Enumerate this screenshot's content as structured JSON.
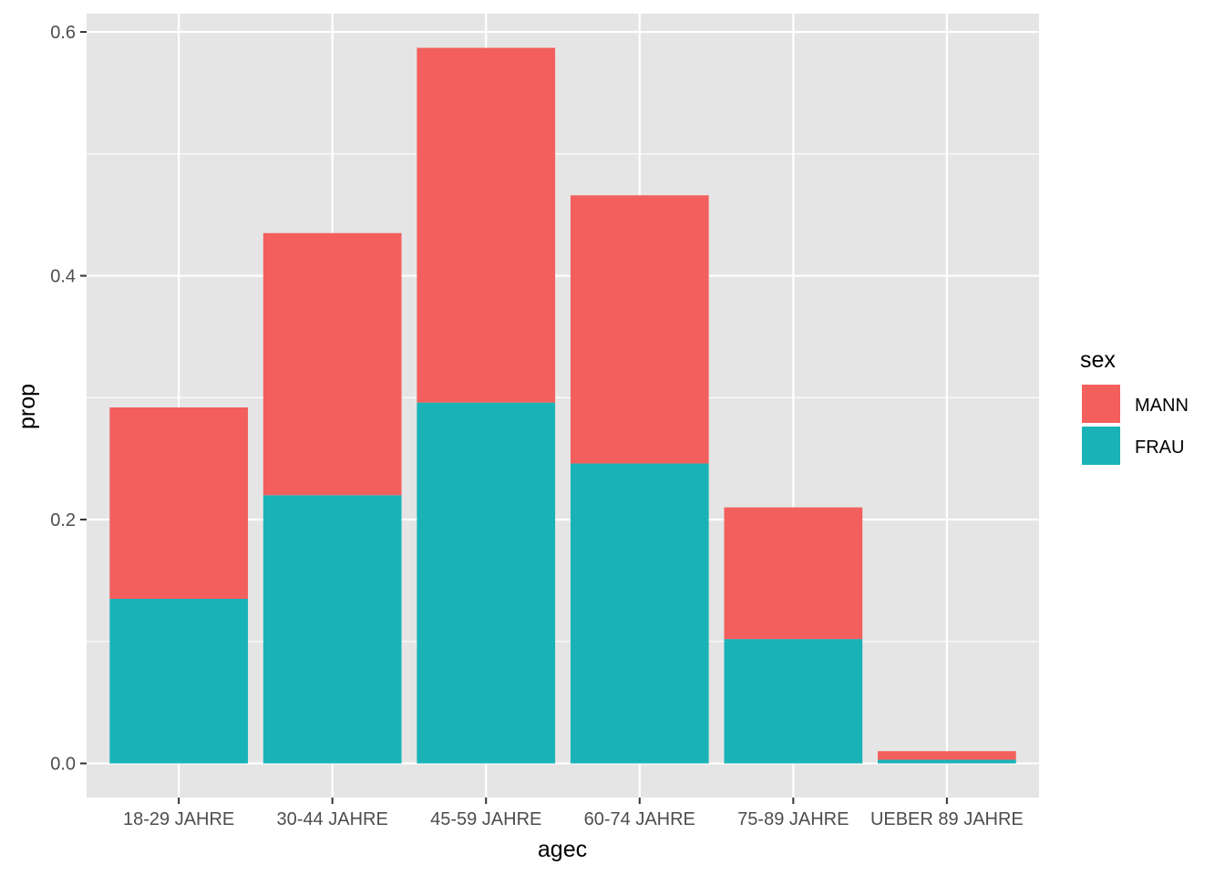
{
  "chart_data": {
    "type": "bar",
    "stacked": true,
    "categories": [
      "18-29 JAHRE",
      "30-44 JAHRE",
      "45-59 JAHRE",
      "60-74 JAHRE",
      "75-89 JAHRE",
      "UEBER 89 JAHRE"
    ],
    "series": [
      {
        "name": "FRAU",
        "color": "#19B3B7",
        "values": [
          0.135,
          0.22,
          0.296,
          0.246,
          0.102,
          0.003
        ]
      },
      {
        "name": "MANN",
        "color": "#F25F5C",
        "values": [
          0.157,
          0.215,
          0.291,
          0.22,
          0.108,
          0.007
        ]
      }
    ],
    "xlabel": "agec",
    "ylabel": "prop",
    "ylim": [
      -0.028,
      0.615
    ],
    "yticks": [
      0.0,
      0.2,
      0.4,
      0.6
    ],
    "ytick_labels": [
      "0.0",
      "0.2",
      "0.4",
      "0.6"
    ],
    "legend": {
      "title": "sex",
      "placement": "right",
      "entries": [
        {
          "label": "MANN",
          "color": "#F25F5C"
        },
        {
          "label": "FRAU",
          "color": "#19B3B7"
        }
      ]
    },
    "grid": true,
    "panel_background": "#E5E5E5",
    "grid_color": "#FFFFFF"
  }
}
